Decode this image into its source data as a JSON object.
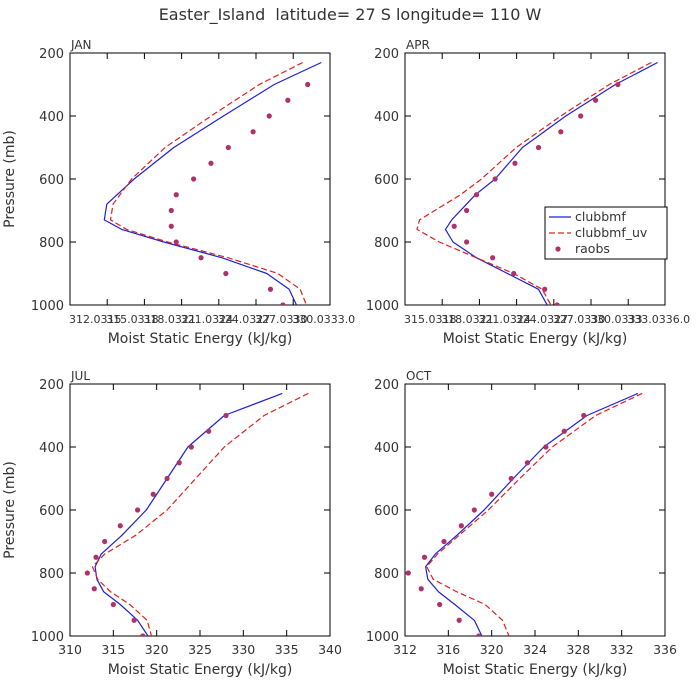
{
  "figure_title": "Easter_Island  latitude= 27 S longitude= 110 W",
  "colors": {
    "clubbmf": "#1f1fd6",
    "clubbmf_uv": "#e0201c",
    "raobs": "#b0306a",
    "axis": "#000000"
  },
  "legend": {
    "placement": "right-middle of APR panel",
    "entries": [
      {
        "name": "clubbmf",
        "style": "solid"
      },
      {
        "name": "clubbmf_uv",
        "style": "dashed"
      },
      {
        "name": "raobs",
        "style": "dots"
      }
    ]
  },
  "chart_data": [
    {
      "type": "line",
      "title": "JAN",
      "xlabel": "Moist Static Energy (kJ/kg)",
      "ylabel": "Pressure (mb)",
      "xlim": [
        312.0315,
        333.0
      ],
      "xticks": [
        312.0315,
        315.0318,
        318.0321,
        321.0324,
        324.0327,
        327.033,
        330.0333
      ],
      "xtick_labels": [
        "312.0315",
        "315.0318",
        "318.0321",
        "321.0324",
        "324.0327",
        "327.0330",
        "330.0333.0"
      ],
      "ylim": [
        1000,
        200
      ],
      "yticks": [
        200,
        400,
        600,
        800,
        1000
      ],
      "series": [
        {
          "name": "clubbmf",
          "x": [
            332.3,
            328.5,
            324.4,
            320.4,
            317.2,
            315.0,
            314.8,
            316.2,
            319.6,
            324.3,
            327.9,
            329.7,
            330.3
          ],
          "y": [
            230,
            300,
            400,
            500,
            600,
            680,
            730,
            760,
            800,
            850,
            900,
            950,
            1000
          ]
        },
        {
          "name": "clubbmf_uv",
          "x": [
            330.8,
            327.3,
            323.4,
            319.7,
            317.0,
            315.5,
            315.3,
            316.6,
            319.9,
            324.8,
            328.8,
            330.6,
            331.1
          ],
          "y": [
            230,
            300,
            400,
            500,
            600,
            680,
            730,
            760,
            800,
            850,
            900,
            950,
            1000
          ]
        },
        {
          "name": "raobs",
          "x": [
            331.2,
            329.6,
            328.1,
            326.8,
            324.8,
            323.4,
            322.0,
            320.6,
            320.2,
            320.2,
            320.6,
            322.6,
            324.6,
            328.2,
            329.2
          ],
          "y": [
            300,
            350,
            400,
            450,
            500,
            550,
            600,
            650,
            700,
            750,
            800,
            850,
            900,
            950,
            1000
          ]
        }
      ]
    },
    {
      "type": "line",
      "title": "APR",
      "xlabel": "Moist Static Energy (kJ/kg)",
      "ylabel": "",
      "xlim": [
        315.0318,
        336.0
      ],
      "xticks": [
        315.0318,
        318.0321,
        321.0324,
        324.0327,
        327.033,
        330.0333,
        333.0336
      ],
      "xtick_labels": [
        "315.0318",
        "318.0321",
        "321.0324",
        "324.0327",
        "327.0330",
        "330.0333",
        "333.0336.0"
      ],
      "ylim": [
        1000,
        200
      ],
      "yticks": [
        200,
        400,
        600,
        800,
        1000
      ],
      "series": [
        {
          "name": "clubbmf",
          "x": [
            335.4,
            332.0,
            328.0,
            324.5,
            322.3,
            320.7,
            318.8,
            318.3,
            318.9,
            320.8,
            323.3,
            325.8,
            326.5
          ],
          "y": [
            230,
            300,
            400,
            500,
            600,
            650,
            730,
            760,
            800,
            850,
            900,
            950,
            1000
          ]
        },
        {
          "name": "clubbmf_uv",
          "x": [
            334.9,
            331.5,
            327.6,
            324.0,
            321.2,
            319.5,
            316.2,
            316.0,
            317.8,
            320.8,
            323.8,
            326.1,
            326.8
          ],
          "y": [
            230,
            300,
            400,
            500,
            600,
            650,
            730,
            760,
            800,
            850,
            900,
            950,
            1000
          ]
        },
        {
          "name": "raobs",
          "x": [
            332.2,
            330.4,
            329.2,
            327.6,
            325.8,
            323.9,
            322.3,
            320.8,
            320.0,
            319.0,
            320.0,
            322.1,
            323.8,
            326.3,
            327.3
          ],
          "y": [
            300,
            350,
            400,
            450,
            500,
            550,
            600,
            650,
            700,
            750,
            800,
            850,
            900,
            950,
            1000
          ]
        }
      ]
    },
    {
      "type": "line",
      "title": "JUL",
      "xlabel": "Moist Static Energy (kJ/kg)",
      "ylabel": "Pressure (mb)",
      "xlim": [
        310,
        340
      ],
      "xticks": [
        310,
        315,
        320,
        325,
        330,
        335,
        340
      ],
      "xtick_labels": [
        "310",
        "315",
        "320",
        "325",
        "330",
        "335",
        "340"
      ],
      "ylim": [
        1000,
        200
      ],
      "yticks": [
        200,
        400,
        600,
        800,
        1000
      ],
      "series": [
        {
          "name": "clubbmf",
          "x": [
            334.5,
            327.8,
            323.6,
            321.2,
            318.8,
            316.0,
            313.6,
            312.9,
            313.1,
            313.9,
            315.8,
            317.8,
            319.0
          ],
          "y": [
            230,
            300,
            400,
            500,
            600,
            680,
            740,
            780,
            820,
            860,
            900,
            950,
            1000
          ]
        },
        {
          "name": "clubbmf_uv",
          "x": [
            337.5,
            332.4,
            327.8,
            324.5,
            321.2,
            317.6,
            314.0,
            312.6,
            313.2,
            314.7,
            316.9,
            318.9,
            319.4
          ],
          "y": [
            230,
            300,
            400,
            500,
            600,
            680,
            740,
            780,
            820,
            860,
            900,
            950,
            1000
          ]
        },
        {
          "name": "raobs",
          "x": [
            328.0,
            326.0,
            324.0,
            322.6,
            321.2,
            319.6,
            317.8,
            315.8,
            314.0,
            313.0,
            312.0,
            312.8,
            315.0,
            317.4,
            318.4
          ],
          "y": [
            300,
            350,
            400,
            450,
            500,
            550,
            600,
            650,
            700,
            750,
            800,
            850,
            900,
            950,
            1000
          ]
        }
      ]
    },
    {
      "type": "line",
      "title": "OCT",
      "xlabel": "Moist Static Energy (kJ/kg)",
      "ylabel": "",
      "xlim": [
        312,
        336
      ],
      "xticks": [
        312,
        316,
        320,
        324,
        328,
        332,
        336
      ],
      "xtick_labels": [
        "312",
        "316",
        "320",
        "324",
        "328",
        "332",
        "336"
      ],
      "ylim": [
        1000,
        200
      ],
      "yticks": [
        200,
        400,
        600,
        800,
        1000
      ],
      "series": [
        {
          "name": "clubbmf",
          "x": [
            333.5,
            328.8,
            324.8,
            322.0,
            319.3,
            316.8,
            314.8,
            313.9,
            314.1,
            315.1,
            316.6,
            318.4,
            319.1
          ],
          "y": [
            230,
            300,
            400,
            500,
            600,
            680,
            740,
            780,
            820,
            860,
            900,
            950,
            1000
          ]
        },
        {
          "name": "clubbmf_uv",
          "x": [
            333.9,
            329.6,
            325.6,
            322.6,
            319.7,
            317.0,
            315.0,
            314.0,
            314.6,
            316.8,
            319.4,
            321.0,
            321.6
          ],
          "y": [
            230,
            300,
            400,
            500,
            600,
            680,
            740,
            780,
            820,
            860,
            900,
            950,
            1000
          ]
        },
        {
          "name": "raobs",
          "x": [
            328.5,
            326.7,
            325.0,
            323.3,
            321.8,
            320.0,
            318.4,
            317.2,
            315.6,
            313.8,
            312.3,
            313.5,
            315.2,
            317.0,
            318.8
          ],
          "y": [
            300,
            350,
            400,
            450,
            500,
            550,
            600,
            650,
            700,
            750,
            800,
            850,
            900,
            950,
            1000
          ]
        }
      ]
    }
  ]
}
